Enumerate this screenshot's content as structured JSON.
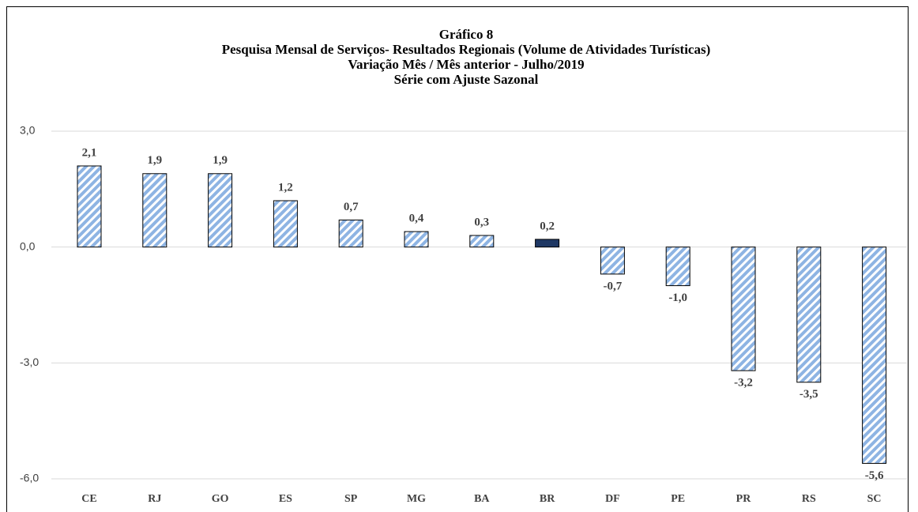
{
  "chart_data": {
    "type": "bar",
    "title": [
      "Gráfico 8",
      "Pesquisa Mensal de Serviços- Resultados Regionais (Volume de Atividades Turísticas)",
      "Variação Mês / Mês anterior  - Julho/2019",
      "Série com Ajuste Sazonal"
    ],
    "categories": [
      "CE",
      "RJ",
      "GO",
      "ES",
      "SP",
      "MG",
      "BA",
      "BR",
      "DF",
      "PE",
      "PR",
      "RS",
      "SC"
    ],
    "values": [
      2.1,
      1.9,
      1.9,
      1.2,
      0.7,
      0.4,
      0.3,
      0.2,
      -0.7,
      -1.0,
      -3.2,
      -3.5,
      -5.6
    ],
    "value_labels": [
      "2,1",
      "1,9",
      "1,9",
      "1,2",
      "0,7",
      "0,4",
      "0,3",
      "0,2",
      "-0,7",
      "-1,0",
      "-3,2",
      "-3,5",
      "-5,6"
    ],
    "colors": [
      "#8eb4e3",
      "#8eb4e3",
      "#8eb4e3",
      "#8eb4e3",
      "#8eb4e3",
      "#8eb4e3",
      "#8eb4e3",
      "#1f3864",
      "#8eb4e3",
      "#8eb4e3",
      "#8eb4e3",
      "#8eb4e3",
      "#8eb4e3"
    ],
    "hatched": [
      true,
      true,
      true,
      true,
      true,
      true,
      true,
      false,
      true,
      true,
      true,
      true,
      true
    ],
    "ylim": [
      -6,
      3
    ],
    "yticks": [
      {
        "value": -6,
        "label": "-6,0"
      },
      {
        "value": -3,
        "label": "-3,0"
      },
      {
        "value": 0,
        "label": "0,0"
      },
      {
        "value": 3,
        "label": "3,0"
      }
    ],
    "grid": true
  }
}
